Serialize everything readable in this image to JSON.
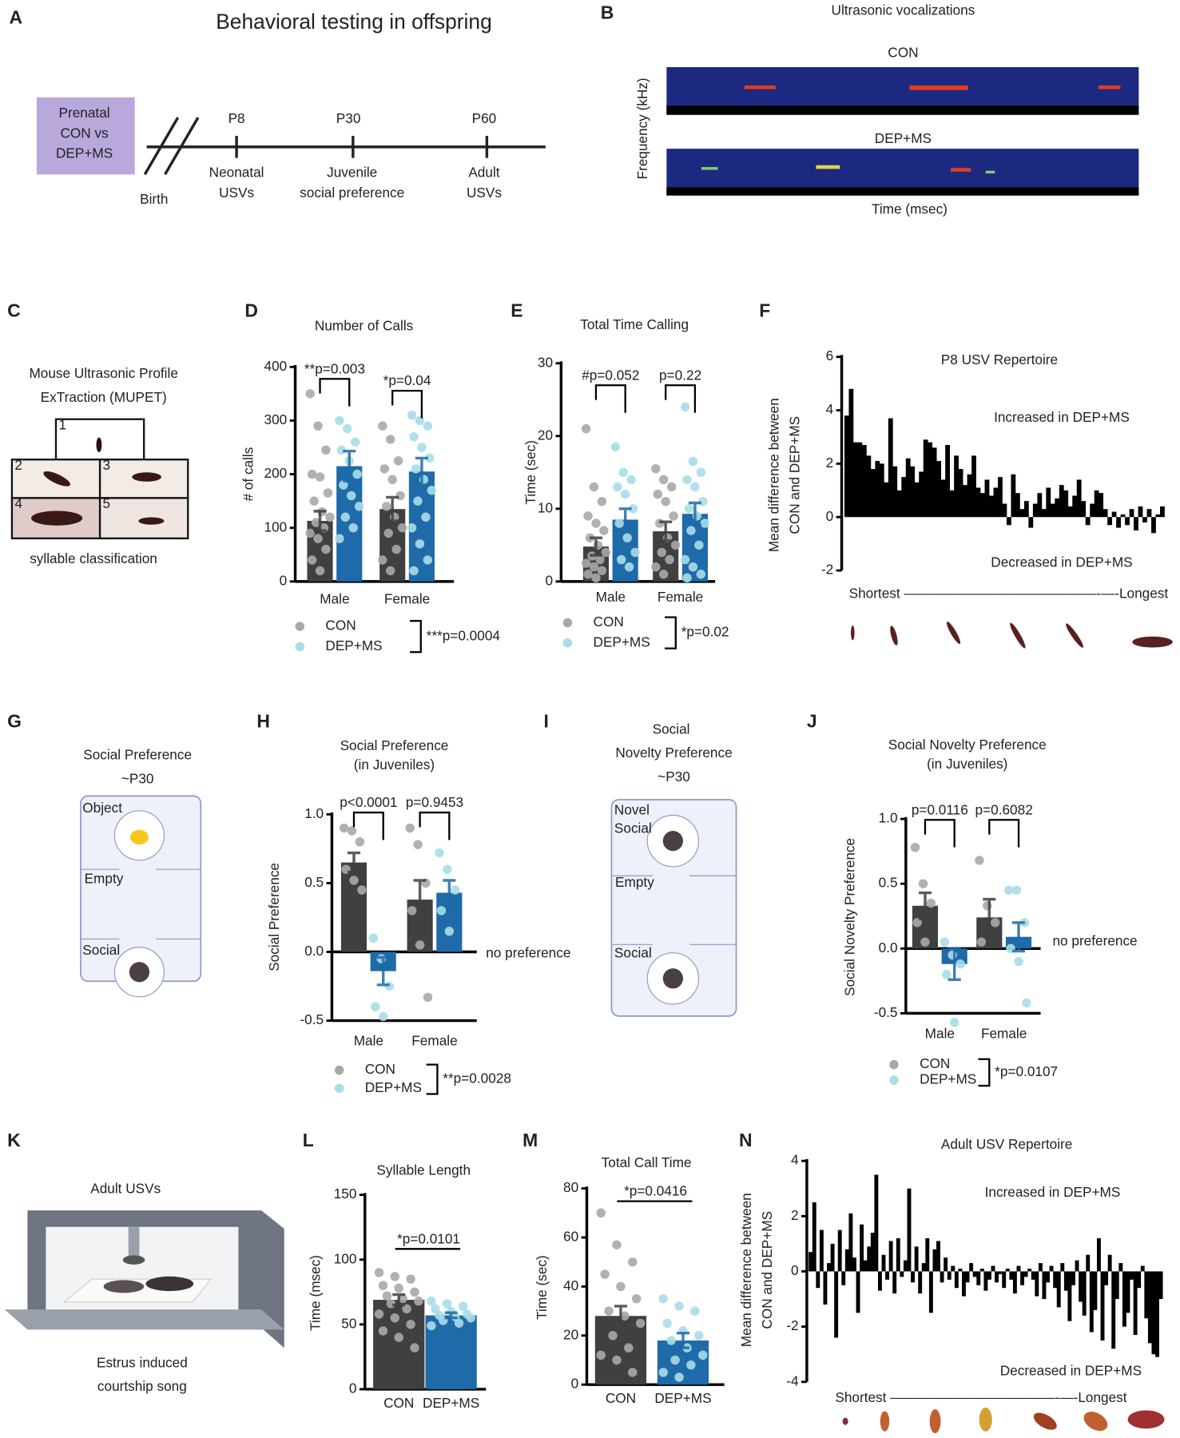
{
  "figure": {
    "panels": [
      "A",
      "B",
      "C",
      "D",
      "E",
      "F",
      "G",
      "H",
      "I",
      "J",
      "K",
      "L",
      "M",
      "N"
    ],
    "timeline": {
      "title": "Behavioral testing in offspring",
      "box": [
        "Prenatal",
        "CON vs",
        "DEP+MS"
      ],
      "birth": "Birth",
      "stages": [
        {
          "age": "P8",
          "label": [
            "Neonatal",
            "USVs"
          ]
        },
        {
          "age": "P30",
          "label": [
            "Juvenile",
            "social preference"
          ]
        },
        {
          "age": "P60",
          "label": [
            "Adult",
            "USVs"
          ]
        }
      ]
    },
    "spectrogram": {
      "title": "Ultrasonic vocalizations",
      "rows": [
        "CON",
        "DEP+MS"
      ],
      "y_label": "Frequency (kHz)",
      "x_label": "Time (msec)"
    },
    "mupet": {
      "title": [
        "Mouse Ultrasonic Profile",
        "ExTraction (MUPET)"
      ],
      "cells": [
        "1",
        "2",
        "3",
        "4",
        "5"
      ],
      "caption": "syllable classification"
    },
    "social_test": {
      "title": [
        "Social Preference",
        "~P30"
      ],
      "zones": [
        "Object",
        "Empty",
        "Social"
      ]
    },
    "novelty_test": {
      "title": [
        "Social",
        "Novelty Preference",
        "~P30"
      ],
      "zones": [
        "Novel",
        "Social",
        "Empty",
        "Social"
      ]
    },
    "adult_test": {
      "title": "Adult USVs",
      "caption": [
        "Estrus induced",
        "courtship song"
      ]
    }
  },
  "chart_data": [
    {
      "type": "bar",
      "title": "Number of Calls",
      "y_label": "# of calls",
      "categories": [
        "Male",
        "Female"
      ],
      "ylim": [
        0,
        400
      ],
      "yticks": [
        0,
        100,
        200,
        300,
        400
      ],
      "series": [
        {
          "name": "CON",
          "color": "#404040",
          "point_color": "#a8a8a8",
          "values": [
            113,
            135
          ],
          "errors": [
            18,
            22
          ],
          "points": [
            [
              350,
              290,
              245,
              200,
              195,
              165,
              150,
              130,
              120,
              110,
              100,
              90,
              80,
              60,
              40,
              20
            ],
            [
              290,
              265,
              225,
              210,
              190,
              160,
              140,
              120,
              100,
              90,
              60,
              40,
              20
            ]
          ]
        },
        {
          "name": "DEP+MS",
          "color": "#1f6aa8",
          "point_color": "#a9dde8",
          "values": [
            215,
            205
          ],
          "errors": [
            28,
            25
          ],
          "points": [
            [
              300,
              285,
              260,
              245,
              225,
              200,
              180,
              160,
              140,
              120,
              100,
              80
            ],
            [
              310,
              300,
              290,
              270,
              250,
              230,
              210,
              190,
              170,
              150,
              120,
              100,
              70,
              40,
              20
            ]
          ]
        }
      ],
      "annotations": [
        "**p=0.003",
        "*p=0.04"
      ],
      "legend_note": "***p=0.0004"
    },
    {
      "type": "bar",
      "title": "Total Time Calling",
      "y_label": "Time (sec)",
      "categories": [
        "Male",
        "Female"
      ],
      "ylim": [
        0,
        30
      ],
      "yticks": [
        0,
        10,
        20,
        30
      ],
      "series": [
        {
          "name": "CON",
          "color": "#404040",
          "point_color": "#a8a8a8",
          "values": [
            4.8,
            6.9
          ],
          "errors": [
            1.2,
            1.3
          ],
          "points": [
            [
              21,
              13,
              11,
              9,
              8,
              7,
              6,
              5,
              4,
              3.5,
              3,
              2.5,
              2,
              1.5,
              1,
              0.5
            ],
            [
              15.5,
              14,
              13,
              12,
              11,
              9,
              8,
              6,
              5,
              4,
              3,
              2,
              1
            ]
          ]
        },
        {
          "name": "DEP+MS",
          "color": "#1f6aa8",
          "point_color": "#a9dde8",
          "values": [
            8.5,
            9.3
          ],
          "errors": [
            1.5,
            1.5
          ],
          "points": [
            [
              18.5,
              15,
              14,
              13,
              12,
              10,
              8,
              6,
              4,
              3,
              2
            ],
            [
              24,
              16.5,
              15,
              14,
              13,
              11,
              10,
              9,
              8,
              7,
              5,
              3,
              2,
              1,
              0.5
            ]
          ]
        }
      ],
      "annotations": [
        "#p=0.052",
        "p=0.22"
      ],
      "legend_note": "*p=0.02"
    },
    {
      "type": "bar",
      "title": "P8 USV Repertoire",
      "y_label": [
        "Mean difference between",
        "CON and DEP+MS"
      ],
      "x_label": "Shortest ——————————————-—-Longest",
      "color": "#000000",
      "ylim": [
        -2,
        6
      ],
      "yticks": [
        -2,
        0,
        2,
        4,
        6
      ],
      "values": [
        3.8,
        4.8,
        2.8,
        2.8,
        2.7,
        2.3,
        1.8,
        2.1,
        2.0,
        1.3,
        3.7,
        1.9,
        1.0,
        1.5,
        2.2,
        1.9,
        1.3,
        1.7,
        2.9,
        2.8,
        2.6,
        2.1,
        1.4,
        2.7,
        1.0,
        2.3,
        1.8,
        1.2,
        1.6,
        2.3,
        1.1,
        0.9,
        1.4,
        0.8,
        1.1,
        1.5,
        0.5,
        -0.3,
        1.6,
        0.9,
        0.3,
        0.6,
        -0.4,
        0.5,
        0.9,
        0.3,
        1.1,
        0.5,
        0.7,
        1.2,
        1.0,
        0.4,
        0.8,
        1.4,
        0.6,
        -0.3,
        0.5,
        1.0,
        0.9,
        0.3,
        -0.3,
        0.2,
        -0.4,
        0.1,
        -0.3,
        0.3,
        -0.5,
        0.4,
        -0.2,
        0.3,
        -0.6,
        0.1,
        0.4
      ],
      "annotations": [
        "Increased in DEP+MS",
        "Decreased in DEP+MS"
      ]
    },
    {
      "type": "bar",
      "title": [
        "Social Preference",
        "(in Juveniles)"
      ],
      "y_label": "Social Preference",
      "categories": [
        "Male",
        "Female"
      ],
      "ylim": [
        -0.5,
        1.0
      ],
      "yticks": [
        -0.5,
        {
          "value": 0,
          "label": "0.0"
        },
        {
          "value": 0.5,
          "label": "0.5"
        },
        {
          "value": 1,
          "label": "1.0"
        }
      ],
      "series": [
        {
          "name": "CON",
          "color": "#404040",
          "point_color": "#a8a8a8",
          "values": [
            0.65,
            0.38
          ],
          "errors": [
            0.07,
            0.14
          ],
          "points": [
            [
              0.9,
              0.88,
              0.8,
              0.6,
              0.52,
              0.45
            ],
            [
              0.9,
              0.78,
              0.5,
              0.3,
              0.05,
              -0.33
            ]
          ]
        },
        {
          "name": "DEP+MS",
          "color": "#1f6aa8",
          "point_color": "#a9dde8",
          "values": [
            -0.14,
            0.43
          ],
          "errors": [
            0.1,
            0.09
          ],
          "points": [
            [
              0.1,
              -0.05,
              -0.25,
              -0.4,
              -0.47
            ],
            [
              0.72,
              0.6,
              0.45,
              0.3,
              0.15
            ]
          ]
        }
      ],
      "annotations": [
        "p<0.0001",
        "p=0.9453"
      ],
      "reference_label": "no preference",
      "legend_note": "**p=0.0028"
    },
    {
      "type": "bar",
      "title": [
        "Social Novelty Preference",
        "(in Juveniles)"
      ],
      "y_label": "Social Novelty Preference",
      "categories": [
        "Male",
        "Female"
      ],
      "ylim": [
        -0.5,
        1.0
      ],
      "yticks": [
        -0.5,
        {
          "value": 0,
          "label": "0.0"
        },
        {
          "value": 0.5,
          "label": "0.5"
        },
        {
          "value": 1,
          "label": "1.0"
        }
      ],
      "series": [
        {
          "name": "CON",
          "color": "#404040",
          "point_color": "#a8a8a8",
          "values": [
            0.33,
            0.24
          ],
          "errors": [
            0.1,
            0.14
          ],
          "points": [
            [
              0.78,
              0.5,
              0.35,
              0.2,
              0.05
            ],
            [
              0.68,
              0.33,
              0.2,
              0.05
            ]
          ]
        },
        {
          "name": "DEP+MS",
          "color": "#1f6aa8",
          "point_color": "#a9dde8",
          "values": [
            -0.12,
            0.09
          ],
          "errors": [
            0.12,
            0.11
          ],
          "points": [
            [
              0.05,
              -0.05,
              -0.12,
              -0.2,
              -0.57
            ],
            [
              0.45,
              0.45,
              0.2,
              0.0,
              -0.1,
              -0.42
            ]
          ]
        }
      ],
      "annotations": [
        "p=0.0116",
        "p=0.6082"
      ],
      "reference_label": "no preference",
      "legend_note": "*p=0.0107"
    },
    {
      "type": "bar",
      "title": "Syllable Length",
      "y_label": "Time (msec)",
      "categories": [
        "CON",
        "DEP+MS"
      ],
      "colors": [
        "#404040",
        "#1f6aa8"
      ],
      "point_colors": [
        "#a8a8a8",
        "#a9dde8"
      ],
      "ylim": [
        0,
        150
      ],
      "yticks": [
        0,
        50,
        100,
        150
      ],
      "values": [
        69,
        57
      ],
      "errors": [
        4,
        2
      ],
      "points": [
        [
          90,
          87,
          85,
          80,
          78,
          75,
          72,
          70,
          68,
          66,
          62,
          58,
          55,
          50,
          45,
          40,
          32
        ],
        [
          68,
          66,
          64,
          62,
          60,
          58,
          57,
          56,
          55,
          53,
          51,
          49
        ]
      ],
      "annotations": [
        "*p=0.0101"
      ]
    },
    {
      "type": "bar",
      "title": "Total Call Time",
      "y_label": "Time (sec)",
      "categories": [
        "CON",
        "DEP+MS"
      ],
      "colors": [
        "#404040",
        "#1f6aa8"
      ],
      "point_colors": [
        "#a8a8a8",
        "#a9dde8"
      ],
      "ylim": [
        0,
        80
      ],
      "yticks": [
        0,
        20,
        40,
        60,
        80
      ],
      "values": [
        28,
        18
      ],
      "errors": [
        4,
        3
      ],
      "points": [
        [
          70,
          57,
          50,
          45,
          40,
          35,
          30,
          28,
          25,
          20,
          15,
          12,
          10,
          5
        ],
        [
          35,
          32,
          30,
          25,
          22,
          20,
          18,
          15,
          12,
          10,
          8,
          5,
          3
        ]
      ],
      "annotations": [
        "*p=0.0416"
      ]
    },
    {
      "type": "bar",
      "title": "Adult USV Repertoire",
      "y_label": [
        "Mean difference between",
        "CON and DEP+MS"
      ],
      "x_label": "Shortest ————————————-—-Longest",
      "color": "#000000",
      "ylim": [
        -4,
        4
      ],
      "yticks": [
        -4,
        -2,
        0,
        2,
        4
      ],
      "values": [
        0.7,
        2.5,
        -0.6,
        1.5,
        -1.2,
        0.3,
        1.0,
        -2.4,
        1.5,
        -0.5,
        0.8,
        2.1,
        0.5,
        -1.5,
        1.7,
        0.4,
        0.9,
        1.4,
        3.5,
        -0.7,
        0.6,
        -0.3,
        1.1,
        -0.8,
        1.2,
        -0.2,
        0.4,
        3.0,
        -0.4,
        0.9,
        -0.8,
        0.3,
        1.2,
        -1.5,
        0.8,
        1.1,
        -0.4,
        0.5,
        -0.3,
        0.2,
        -0.6,
        0.1,
        -0.9,
        -0.4,
        0.3,
        -0.2,
        -0.5,
        0.1,
        -0.7,
        -0.3,
        0.2,
        -0.4,
        -0.1,
        -0.6,
        0.1,
        -0.3,
        -0.8,
        0.2,
        -0.5,
        -0.2,
        0.1,
        -0.3,
        -0.9,
        0.3,
        -1.0,
        -0.4,
        0.2,
        -0.6,
        -1.3,
        0.3,
        -0.7,
        -1.8,
        -0.5,
        0.4,
        -1.1,
        -1.6,
        0.6,
        -2.2,
        -1.4,
        1.2,
        -2.5,
        -0.5,
        0.6,
        -2.8,
        -1.0,
        0.3,
        -2.0,
        -1.5,
        -0.3,
        -2.3,
        -0.6,
        0.2,
        -1.7,
        -2.6,
        -3.0,
        -3.1,
        -1.0
      ],
      "annotations": [
        "Increased in DEP+MS",
        "Decreased in DEP+MS"
      ]
    }
  ]
}
